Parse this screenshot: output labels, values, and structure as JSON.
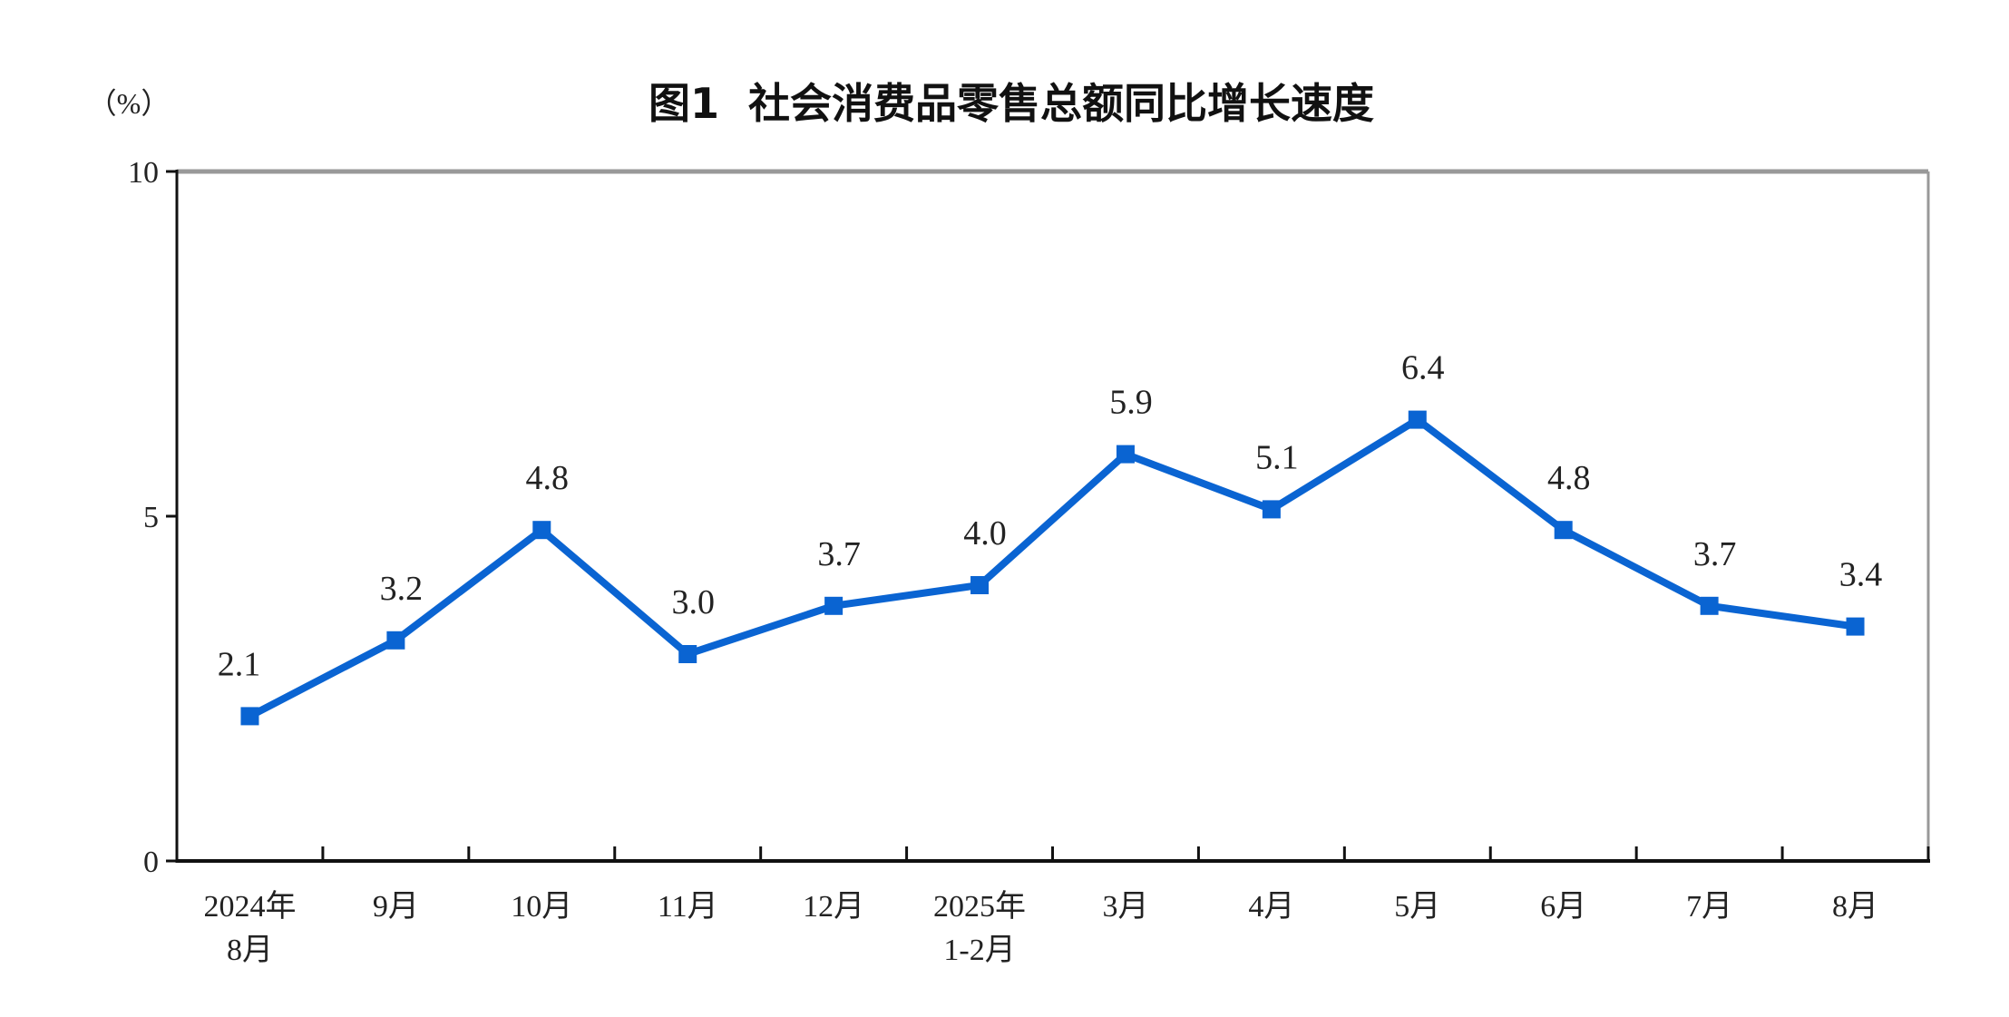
{
  "chart_data": {
    "type": "line",
    "title": "图1  社会消费品零售总额同比增长速度",
    "ylabel": "（%）",
    "xlabel": "",
    "ylim": [
      0,
      10
    ],
    "yticks": [
      0,
      5,
      10
    ],
    "grid": false,
    "categories": [
      "2024年\n8月",
      "9月",
      "10月",
      "11月",
      "12月",
      "2025年\n1-2月",
      "3月",
      "4月",
      "5月",
      "6月",
      "7月",
      "8月"
    ],
    "series": [
      {
        "values": [
          2.1,
          3.2,
          4.8,
          3.0,
          3.7,
          4.0,
          5.9,
          5.1,
          6.4,
          4.8,
          3.7,
          3.4
        ],
        "color": "#0a64d2",
        "marker": "square"
      }
    ],
    "data_labels": [
      "2.1",
      "3.2",
      "4.8",
      "3.0",
      "3.7",
      "4.0",
      "5.9",
      "5.1",
      "6.4",
      "4.8",
      "3.7",
      "3.4"
    ]
  }
}
